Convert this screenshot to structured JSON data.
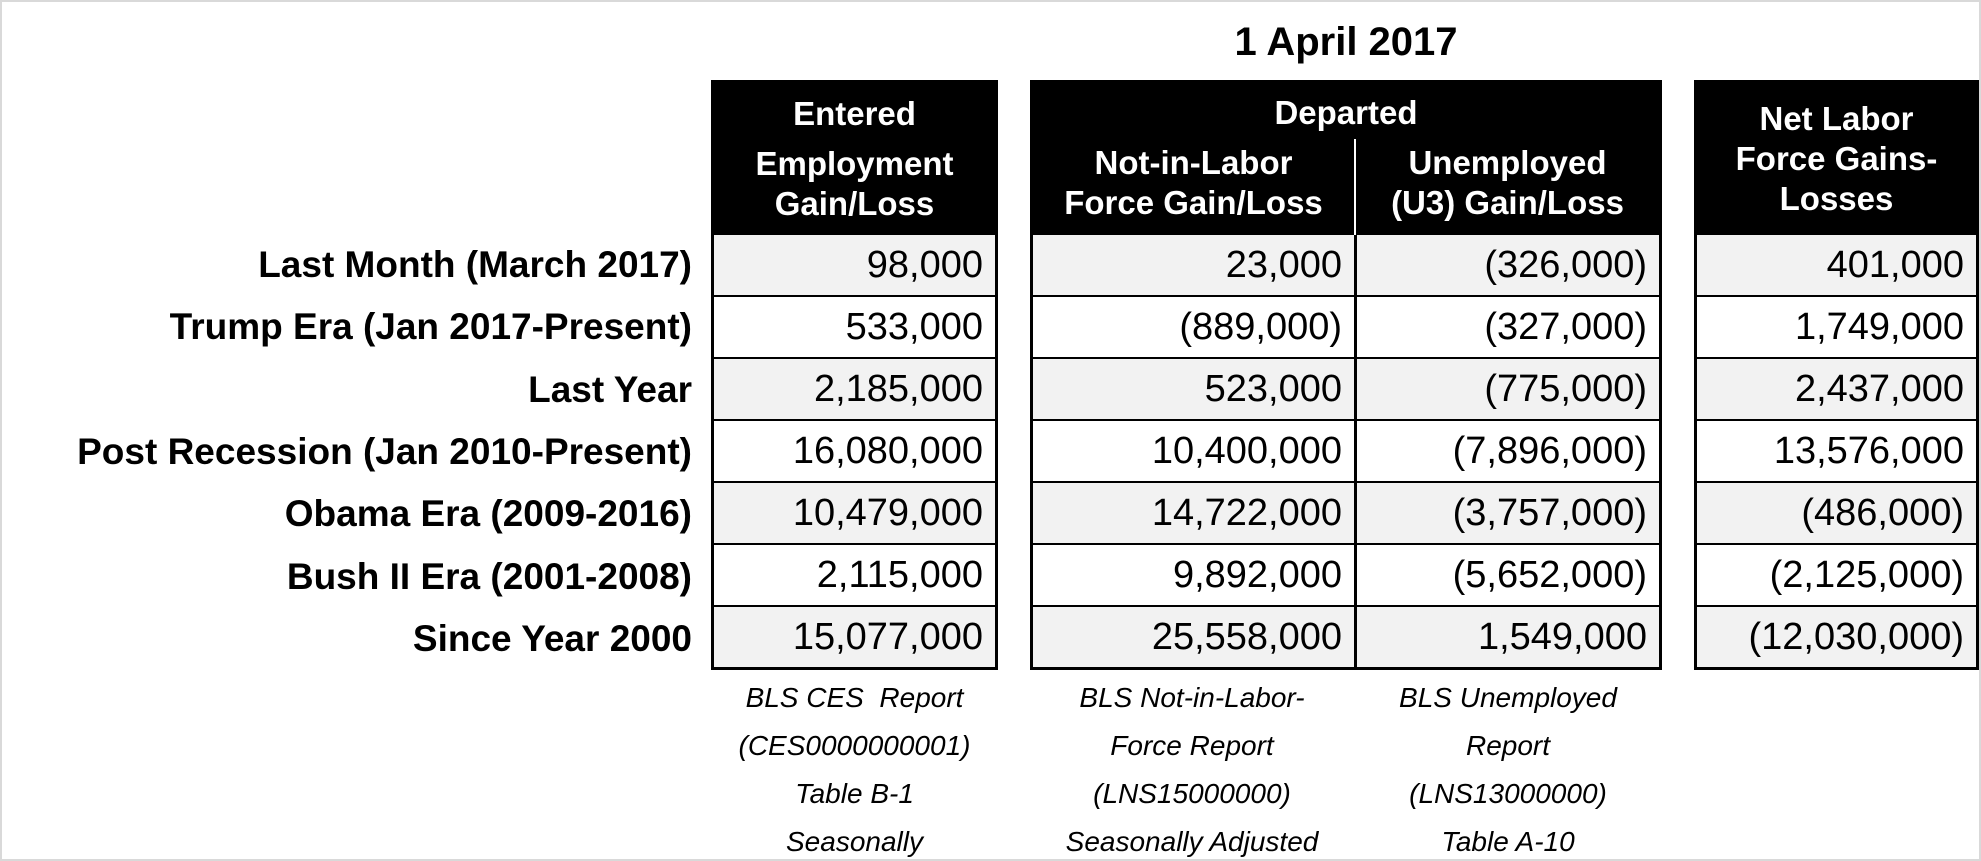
{
  "title": "1 April 2017",
  "header": {
    "entered_group": "Entered",
    "entered_sub": "Employment Gain/Loss",
    "departed_group": "Departed",
    "departed_sub1": "Not-in-Labor Force Gain/Loss",
    "departed_sub2": "Unemployed (U3) Gain/Loss",
    "net": "Net Labor Force Gains-Losses"
  },
  "rows": [
    {
      "label": "Last Month (March 2017)",
      "employment": "98,000",
      "not_in_labor_force": "23,000",
      "unemployed": "(326,000)",
      "net": "401,000"
    },
    {
      "label": "Trump Era (Jan 2017-Present)",
      "employment": "533,000",
      "not_in_labor_force": "(889,000)",
      "unemployed": "(327,000)",
      "net": "1,749,000"
    },
    {
      "label": "Last Year",
      "employment": "2,185,000",
      "not_in_labor_force": "523,000",
      "unemployed": "(775,000)",
      "net": "2,437,000"
    },
    {
      "label": "Post Recession (Jan 2010-Present)",
      "employment": "16,080,000",
      "not_in_labor_force": "10,400,000",
      "unemployed": "(7,896,000)",
      "net": "13,576,000"
    },
    {
      "label": "Obama Era (2009-2016)",
      "employment": "10,479,000",
      "not_in_labor_force": "14,722,000",
      "unemployed": "(3,757,000)",
      "net": "(486,000)"
    },
    {
      "label": "Bush II Era (2001-2008)",
      "employment": "2,115,000",
      "not_in_labor_force": "9,892,000",
      "unemployed": "(5,652,000)",
      "net": "(2,125,000)"
    },
    {
      "label": "Since Year 2000",
      "employment": "15,077,000",
      "not_in_labor_force": "25,558,000",
      "unemployed": "1,549,000",
      "net": "(12,030,000)"
    }
  ],
  "footnotes": {
    "employment": [
      "BLS CES  Report",
      "(CES0000000001)",
      "Table B-1",
      "Seasonally"
    ],
    "not_in_labor_force": [
      "BLS Not-in-Labor-",
      "Force Report",
      "(LNS15000000)",
      "Seasonally Adjusted"
    ],
    "unemployed": [
      "BLS Unemployed",
      "Report",
      "(LNS13000000)",
      "Table A-10"
    ]
  },
  "colors": {
    "header_bg": "#000000",
    "header_text": "#ffffff",
    "row_alt": "#f2f2f2",
    "row_bg": "#ffffff",
    "border": "#000000"
  },
  "chart_data": {
    "type": "table",
    "title": "1 April 2017",
    "column_groups": [
      {
        "name": "Entered",
        "columns": [
          "Employment Gain/Loss"
        ]
      },
      {
        "name": "Departed",
        "columns": [
          "Not-in-Labor Force Gain/Loss",
          "Unemployed (U3) Gain/Loss"
        ]
      },
      {
        "name": "",
        "columns": [
          "Net Labor Force Gains-Losses"
        ]
      }
    ],
    "row_labels": [
      "Last Month (March 2017)",
      "Trump Era (Jan 2017-Present)",
      "Last Year",
      "Post Recession (Jan 2010-Present)",
      "Obama Era (2009-2016)",
      "Bush II Era (2001-2008)",
      "Since Year 2000"
    ],
    "series": [
      {
        "name": "Employment Gain/Loss",
        "values": [
          98000,
          533000,
          2185000,
          16080000,
          10479000,
          2115000,
          15077000
        ]
      },
      {
        "name": "Not-in-Labor Force Gain/Loss",
        "values": [
          23000,
          -889000,
          523000,
          10400000,
          14722000,
          9892000,
          25558000
        ]
      },
      {
        "name": "Unemployed (U3) Gain/Loss",
        "values": [
          -326000,
          -327000,
          -775000,
          -7896000,
          -3757000,
          -5652000,
          1549000
        ]
      },
      {
        "name": "Net Labor Force Gains-Losses",
        "values": [
          401000,
          1749000,
          2437000,
          13576000,
          -486000,
          -2125000,
          -12030000
        ]
      }
    ],
    "notes": [
      "BLS CES Report (CES0000000001) Table B-1 Seasonally",
      "BLS Not-in-Labor-Force Report (LNS15000000) Seasonally Adjusted",
      "BLS Unemployed Report (LNS13000000) Table A-10"
    ],
    "value_format": "negatives shown in parentheses"
  }
}
